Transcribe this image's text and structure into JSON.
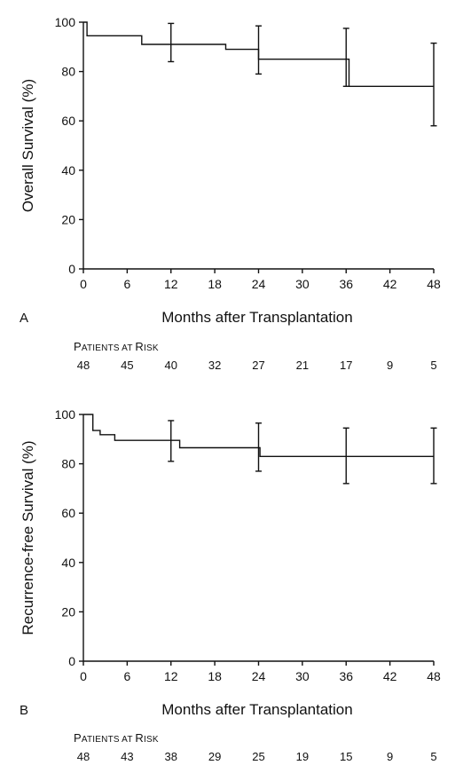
{
  "chart_data": [
    {
      "type": "line",
      "panel_label": "A",
      "ylabel": "Overall Survival (%)",
      "xlabel": "Months after Transplantation",
      "xlim": [
        0,
        48
      ],
      "ylim": [
        0,
        100
      ],
      "x_ticks": [
        0,
        6,
        12,
        18,
        24,
        30,
        36,
        42,
        48
      ],
      "y_ticks": [
        0,
        20,
        40,
        60,
        80,
        100
      ],
      "grid": false,
      "series": [
        {
          "step": [
            [
              0,
              100
            ],
            [
              0.5,
              100
            ],
            [
              0.5,
              94.5
            ],
            [
              8,
              94.5
            ],
            [
              8,
              91
            ],
            [
              19.5,
              91
            ],
            [
              19.5,
              89
            ],
            [
              24,
              89
            ],
            [
              24,
              85
            ],
            [
              36,
              85
            ],
            [
              36.4,
              85
            ],
            [
              36.4,
              74
            ],
            [
              48,
              74
            ]
          ]
        }
      ],
      "error_bars": [
        {
          "x": 12,
          "y": 91,
          "low": 84,
          "high": 99.5
        },
        {
          "x": 24,
          "y": 89,
          "low": 79,
          "high": 98.5
        },
        {
          "x": 36,
          "y": 85,
          "low": 74,
          "high": 97.5
        },
        {
          "x": 48,
          "y": 74,
          "low": 58,
          "high": 91.5
        }
      ],
      "risk_table": {
        "title_cap1": "P",
        "title_rest1": "ATIENTS AT ",
        "title_cap2": "R",
        "title_rest2": "ISK",
        "x": [
          0,
          6,
          12,
          18,
          24,
          30,
          36,
          42,
          48
        ],
        "values": [
          "48",
          "45",
          "40",
          "32",
          "27",
          "21",
          "17",
          "9",
          "5"
        ]
      }
    },
    {
      "type": "line",
      "panel_label": "B",
      "ylabel": "Recurrence-free Survival (%)",
      "xlabel": "Months after Transplantation",
      "xlim": [
        0,
        48
      ],
      "ylim": [
        0,
        100
      ],
      "x_ticks": [
        0,
        6,
        12,
        18,
        24,
        30,
        36,
        42,
        48
      ],
      "y_ticks": [
        0,
        20,
        40,
        60,
        80,
        100
      ],
      "grid": false,
      "series": [
        {
          "step": [
            [
              0,
              100
            ],
            [
              1.3,
              100
            ],
            [
              1.3,
              93.5
            ],
            [
              2.3,
              93.5
            ],
            [
              2.3,
              91.8
            ],
            [
              4.3,
              91.8
            ],
            [
              4.3,
              89.5
            ],
            [
              13.2,
              89.5
            ],
            [
              13.2,
              86.5
            ],
            [
              24.2,
              86.5
            ],
            [
              24.2,
              83
            ],
            [
              48,
              83
            ]
          ]
        }
      ],
      "error_bars": [
        {
          "x": 12,
          "y": 89.5,
          "low": 81,
          "high": 97.5
        },
        {
          "x": 24,
          "y": 86.5,
          "low": 77,
          "high": 96.5
        },
        {
          "x": 36,
          "y": 83,
          "low": 72,
          "high": 94.5
        },
        {
          "x": 48,
          "y": 83,
          "low": 72,
          "high": 94.5
        }
      ],
      "risk_table": {
        "title_cap1": "P",
        "title_rest1": "ATIENTS AT ",
        "title_cap2": "R",
        "title_rest2": "ISK",
        "x": [
          0,
          6,
          12,
          18,
          24,
          30,
          36,
          42,
          48
        ],
        "values": [
          "48",
          "43",
          "38",
          "29",
          "25",
          "19",
          "15",
          "9",
          "5"
        ]
      }
    }
  ]
}
